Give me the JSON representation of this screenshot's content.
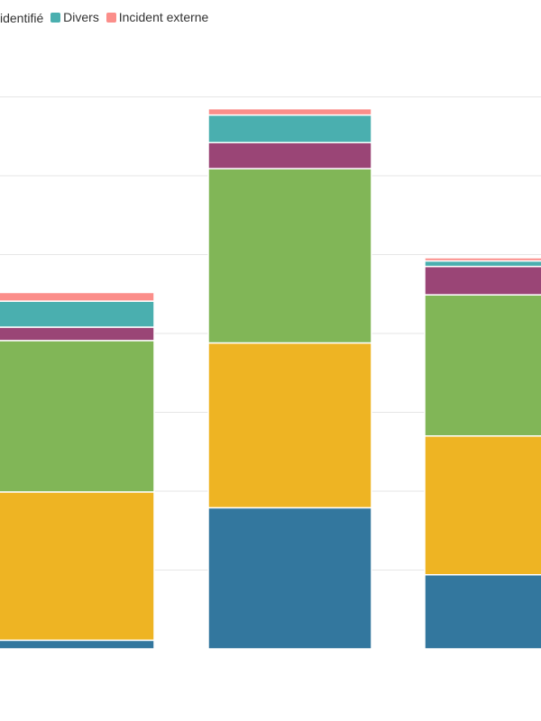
{
  "chart_data": {
    "type": "bar",
    "stacked": true,
    "title": "",
    "xlabel": "",
    "ylabel": "",
    "grid": true,
    "legend_position": "top-left",
    "ylim": [
      0,
      760
    ],
    "categories": [
      "",
      "",
      ""
    ],
    "series": [
      {
        "name": "",
        "color": "#33779e",
        "values": [
          11,
          179,
          94
        ]
      },
      {
        "name": "",
        "color": "#eeb423",
        "values": [
          188,
          209,
          176
        ]
      },
      {
        "name": "",
        "color": "#81b657",
        "values": [
          192,
          221,
          179
        ]
      },
      {
        "name": "",
        "color": "#9a4576",
        "values": [
          17,
          33,
          36
        ]
      },
      {
        "name": "Divers",
        "color": "#4aafaf",
        "values": [
          33,
          35,
          7
        ]
      },
      {
        "name": "Incident externe",
        "color": "#fb8e8a",
        "values": [
          11,
          8,
          4
        ]
      }
    ],
    "legend": [
      {
        "label": "identifié",
        "color": "#81b657"
      },
      {
        "label": "Divers",
        "color": "#4aafaf"
      },
      {
        "label": "Incident externe",
        "color": "#fb8e8a"
      }
    ]
  }
}
